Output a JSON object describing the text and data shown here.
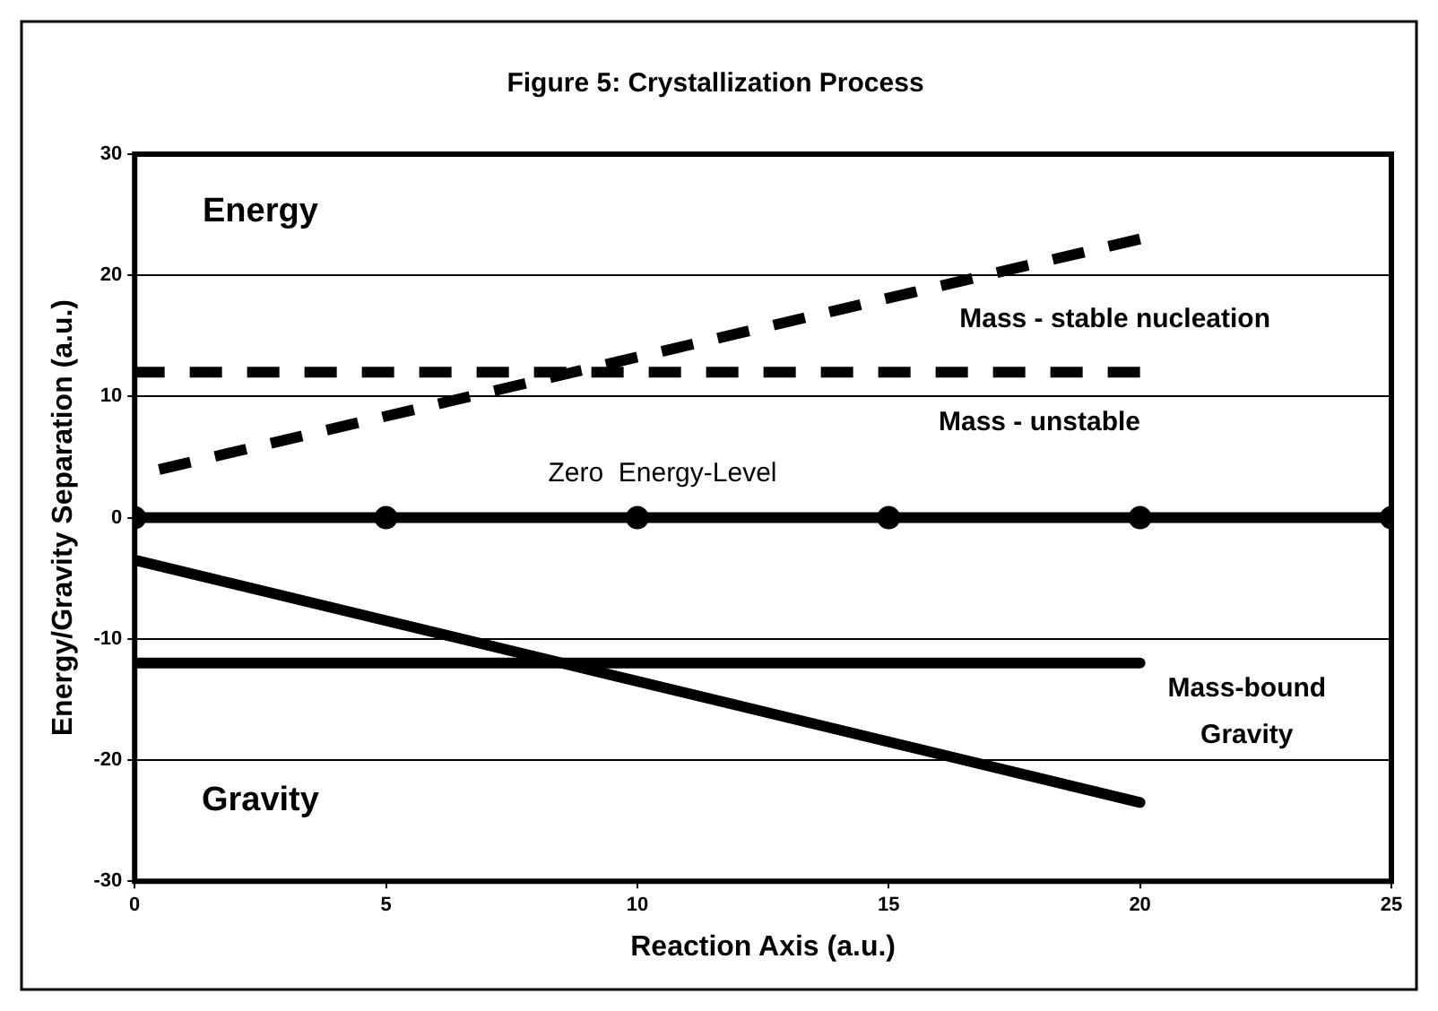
{
  "chart_data": {
    "type": "line",
    "title": "Figure 5: Crystallization Process",
    "xlabel": "Reaction Axis (a.u.)",
    "ylabel": "Energy/Gravity Separation (a.u.)",
    "xlim": [
      0,
      25
    ],
    "xticks": [
      0,
      5,
      10,
      15,
      20,
      25
    ],
    "ylim": [
      -30,
      30
    ],
    "yticks": [
      -30,
      -20,
      -10,
      0,
      10,
      20,
      30
    ],
    "grid": "y",
    "legend": false,
    "series": [
      {
        "color": "#000000",
        "x": [
          0,
          20
        ],
        "values": [
          3.5,
          23
        ],
        "line_style": "dashed",
        "marker": "none"
      },
      {
        "color": "#000000",
        "x": [
          0,
          20
        ],
        "values": [
          12,
          12
        ],
        "line_style": "dashed",
        "marker": "none"
      },
      {
        "color": "#000000",
        "x": [
          0,
          5,
          10,
          15,
          20,
          25
        ],
        "values": [
          0,
          0,
          0,
          0,
          0,
          0
        ],
        "line_style": "solid",
        "marker": "circle"
      },
      {
        "color": "#000000",
        "x": [
          0,
          20
        ],
        "values": [
          -12,
          -12
        ],
        "line_style": "solid",
        "marker": "none"
      },
      {
        "color": "#000000",
        "x": [
          0,
          20
        ],
        "values": [
          -3.5,
          -23.5
        ],
        "line_style": "solid",
        "marker": "none"
      }
    ],
    "annotations": [
      "Energy",
      "Gravity",
      "Mass - stable nucleation",
      "Mass - unstable",
      "Zero  Energy-Level",
      "Mass-bound",
      "Gravity"
    ]
  }
}
